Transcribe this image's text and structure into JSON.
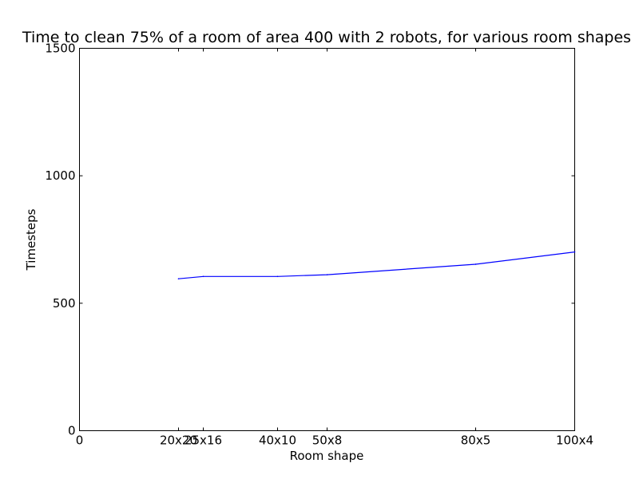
{
  "chart_data": {
    "type": "line",
    "title": "Time to clean 75% of a room of area 400 with 2 robots, for various room shapes",
    "xlabel": "Room shape",
    "ylabel": "Timesteps",
    "xlim": [
      0,
      100
    ],
    "ylim": [
      0,
      1500
    ],
    "grid": false,
    "x_ticks": [
      {
        "value": 0,
        "label": "0"
      },
      {
        "value": 20,
        "label": "20x20"
      },
      {
        "value": 25,
        "label": "25x16"
      },
      {
        "value": 40,
        "label": "40x10"
      },
      {
        "value": 50,
        "label": "50x8"
      },
      {
        "value": 80,
        "label": "80x5"
      },
      {
        "value": 100,
        "label": "100x4"
      }
    ],
    "y_ticks": [
      {
        "value": 0,
        "label": "0"
      },
      {
        "value": 500,
        "label": "500"
      },
      {
        "value": 1000,
        "label": "1000"
      },
      {
        "value": 1500,
        "label": "1500"
      }
    ],
    "series": [
      {
        "color": "#0000ff",
        "x": [
          20,
          25,
          40,
          50,
          80,
          100
        ],
        "y": [
          596,
          605,
          605,
          612,
          653,
          701
        ]
      }
    ]
  }
}
